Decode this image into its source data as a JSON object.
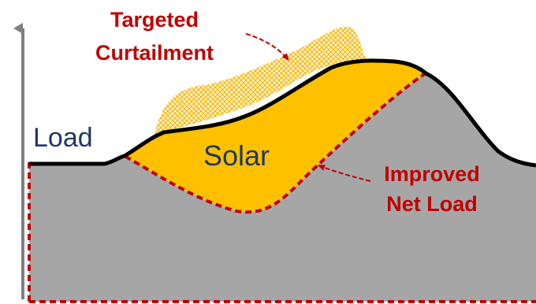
{
  "labels": {
    "load": "Load",
    "solar": "Solar",
    "curtailment_line1": "Targeted",
    "curtailment_line2": "Curtailment",
    "net_load_line1": "Improved",
    "net_load_line2": "Net Load"
  },
  "colors": {
    "net_load_fill": "#a6a6a6",
    "solar_fill": "#ffc000",
    "curtailment_hatch": "#ffd966",
    "load_line": "#000000",
    "net_load_border": "#c00000",
    "load_text": "#1f3864",
    "solar_text": "#1f3864",
    "annotation_text": "#c00000",
    "axis": "#808080"
  }
}
